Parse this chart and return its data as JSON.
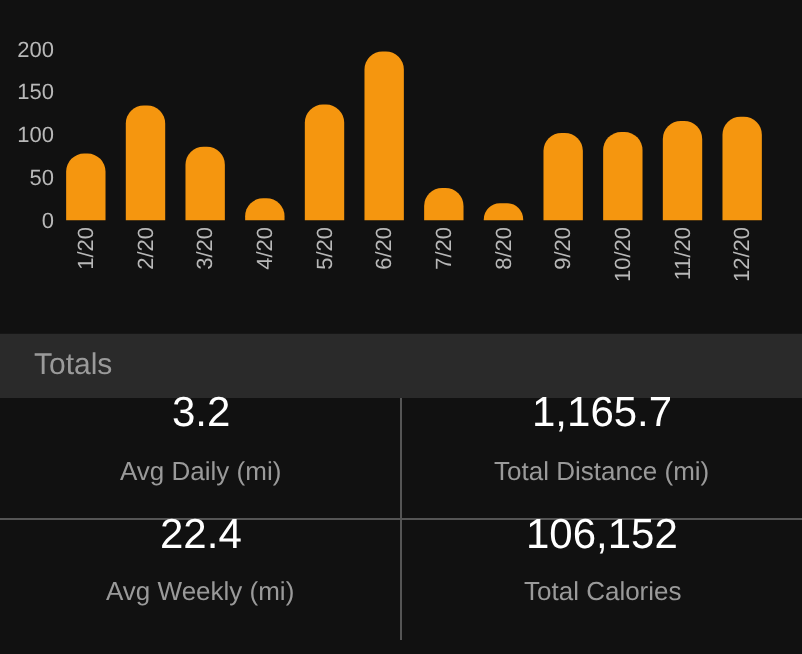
{
  "chart_data": [
    {
      "type": "bar",
      "categories": [
        "1/20",
        "2/20",
        "3/20",
        "4/20",
        "5/20",
        "6/20",
        "7/20",
        "8/20",
        "9/20",
        "10/20",
        "11/20",
        "12/20"
      ],
      "values": [
        78,
        134,
        86,
        26,
        135,
        197,
        38,
        20,
        102,
        103,
        116,
        121
      ],
      "color": "#f5960f",
      "ylim": [
        0,
        210
      ],
      "yticks": [
        0,
        50,
        100,
        150,
        200
      ],
      "grid": false,
      "legend": false
    },
    {
      "type": "other",
      "title": "Totals",
      "annotations": [
        "3.2",
        "Avg Daily (mi)",
        "1,165.7",
        "Total Distance (mi)",
        "22.4",
        "Avg Weekly (mi)",
        "106,152",
        "Total Calories"
      ]
    }
  ]
}
